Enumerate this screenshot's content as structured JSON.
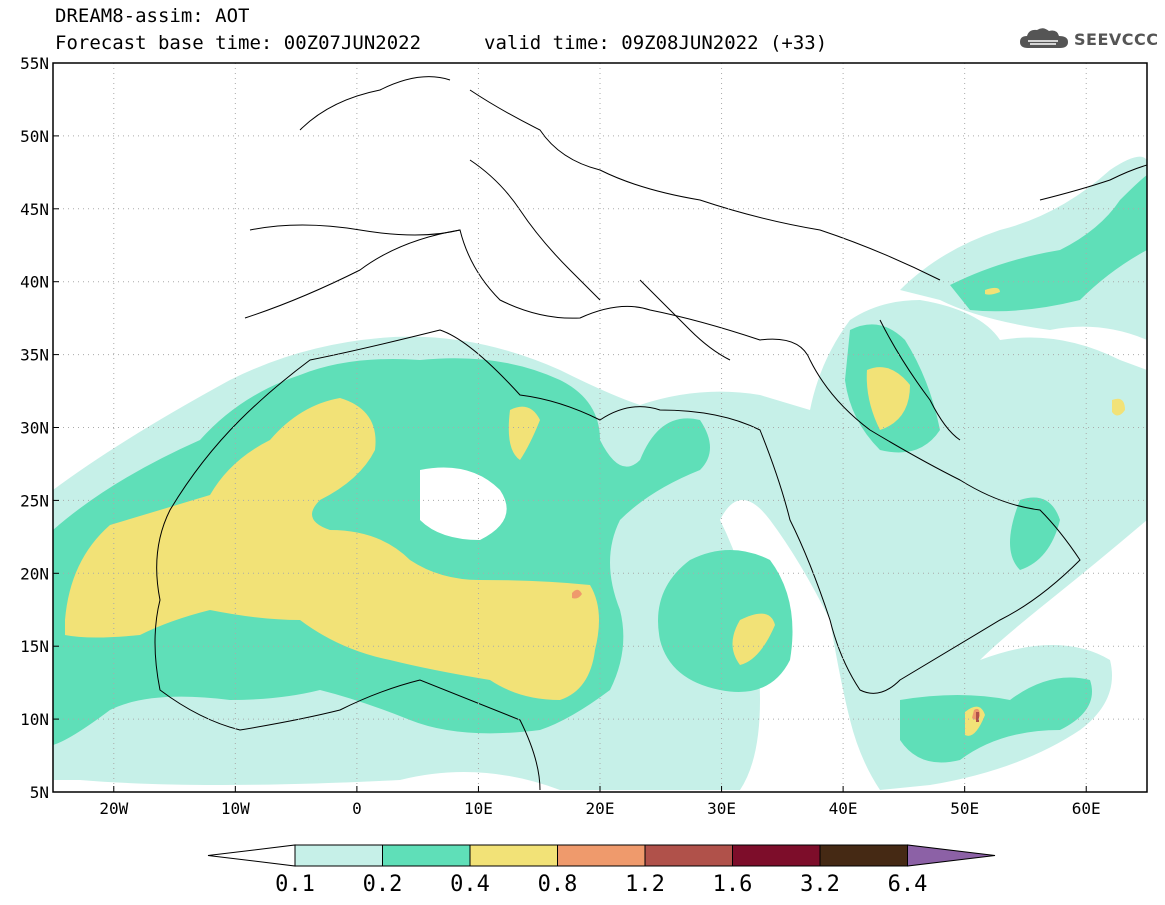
{
  "header": {
    "title_line1": "DREAM8-assim: AOT",
    "title_line2": "Forecast base time: 00Z07JUN2022",
    "title_line3": "valid time: 09Z08JUN2022 (+33)",
    "logo_text": "SEEVCCC"
  },
  "map": {
    "lat_labels": [
      "55N",
      "50N",
      "45N",
      "40N",
      "35N",
      "30N",
      "25N",
      "20N",
      "15N",
      "10N",
      "5N"
    ],
    "lon_labels": [
      "20W",
      "10W",
      "0",
      "10E",
      "20E",
      "30E",
      "40E",
      "50E",
      "60E"
    ],
    "lat_range": [
      5,
      55
    ],
    "lon_range": [
      -25,
      65
    ],
    "grid": "dotted"
  },
  "colorbar": {
    "colors": [
      "#ffffff",
      "#c6f0e8",
      "#5fdfb8",
      "#f2e277",
      "#ef9a6c",
      "#b0514a",
      "#7d0d2a",
      "#452914",
      "#8c61a6"
    ],
    "labels": [
      "0.1",
      "0.2",
      "0.4",
      "0.8",
      "1.2",
      "1.6",
      "3.2",
      "6.4"
    ]
  }
}
